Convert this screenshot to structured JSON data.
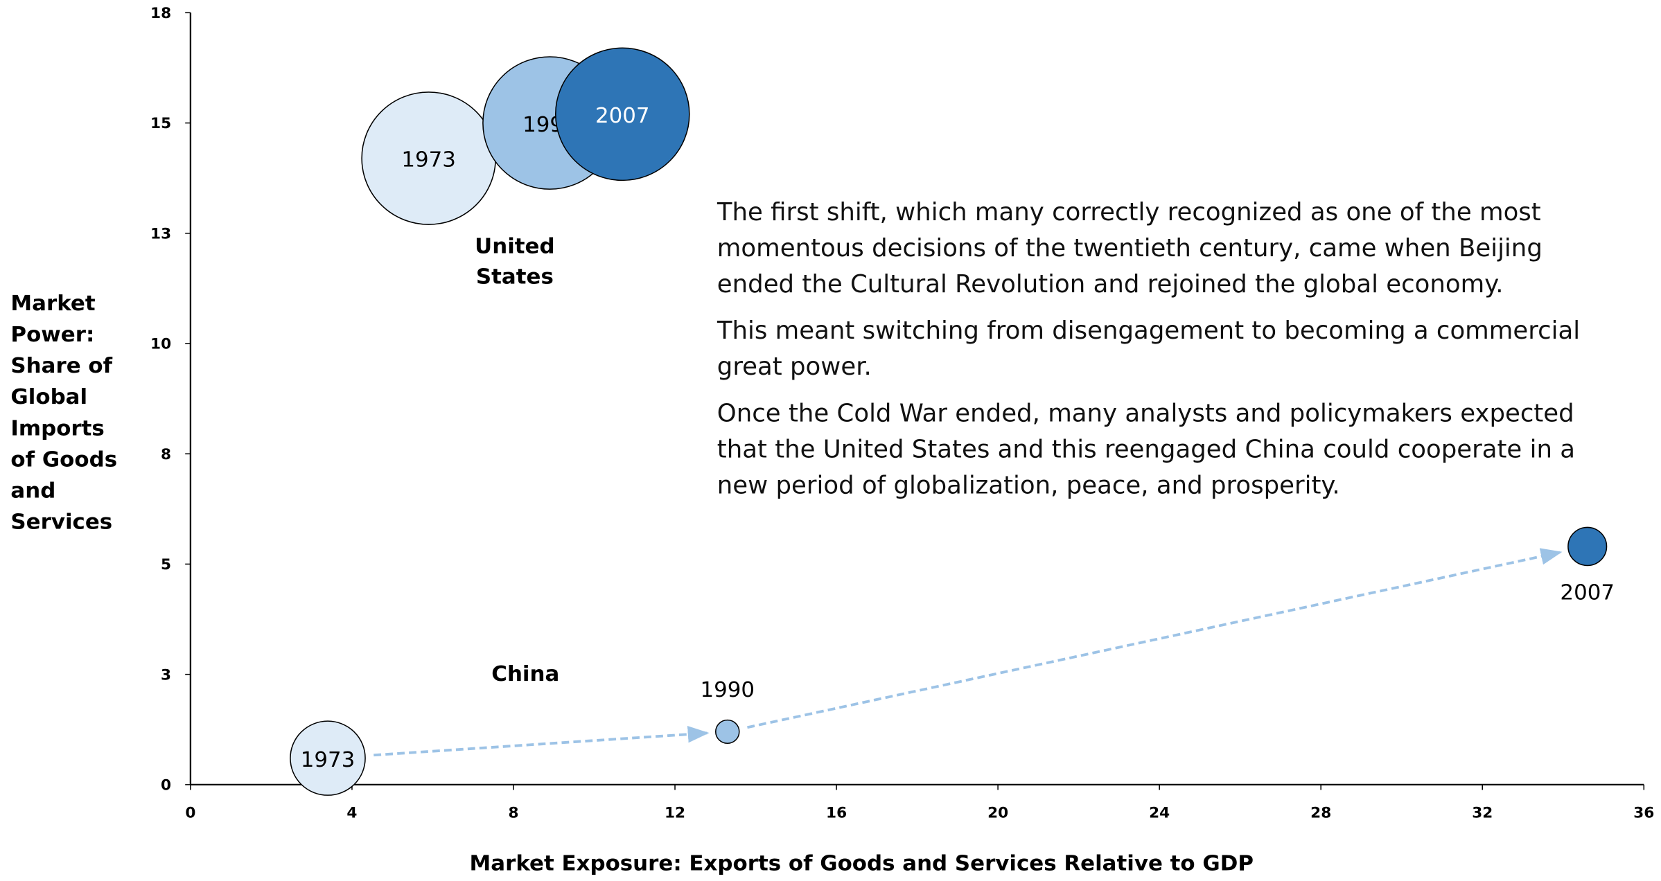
{
  "chart_data": {
    "type": "bubble",
    "x_label": "Market Exposure: Exports of Goods and Services Relative to GDP",
    "y_label": "Market Power: Share of Global Imports of Goods and Services",
    "xlim": [
      0,
      36
    ],
    "xticks": [
      0,
      4,
      8,
      12,
      16,
      20,
      24,
      28,
      32,
      36
    ],
    "ylim": [
      0,
      17.5
    ],
    "yticks": [
      0,
      {
        "value": 2.5,
        "label": "3"
      },
      5,
      {
        "value": 7.5,
        "label": "8"
      },
      10,
      {
        "value": 12.5,
        "label": "13"
      },
      15,
      {
        "value": 17.5,
        "label": "18"
      }
    ],
    "point_colors": [
      "#deebf7",
      "#9dc3e6",
      "#2e75b6"
    ],
    "series": [
      {
        "name": "United States",
        "point_labels": [
          "1973",
          "1990",
          "2007"
        ],
        "x": [
          5.9,
          8.9,
          10.7
        ],
        "values": [
          14.2,
          15.0,
          15.2
        ],
        "sizes": [
          25,
          25,
          25
        ]
      },
      {
        "name": "China",
        "point_labels": [
          "1973",
          "1990",
          "2007"
        ],
        "x": [
          3.4,
          13.3,
          34.6
        ],
        "values": [
          0.6,
          1.2,
          5.4
        ],
        "sizes": [
          14,
          4.4,
          7.2
        ]
      }
    ],
    "paragraphs": [
      "The first shift, which many correctly recognized as one of the most momentous decisions of the twentieth century, came when Beijing ended the Cultural Revolution and rejoined the global economy.",
      "This meant switching from disengagement to becoming a commercial great power.",
      "Once the Cold War ended, many analysts and policymakers expected that the United States and this reengaged China could cooperate in a new period of globalization, peace, and prosperity."
    ]
  }
}
